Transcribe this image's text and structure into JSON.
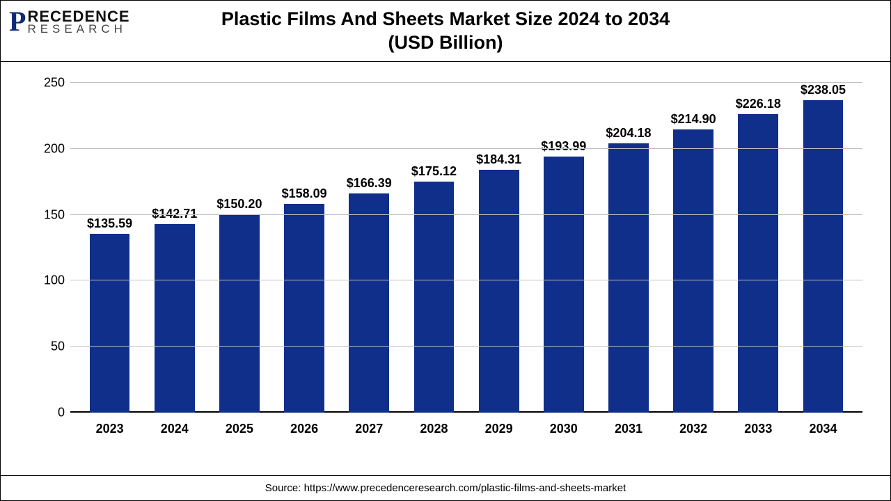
{
  "logo": {
    "mark": "P",
    "line1": "RECEDENCE",
    "line2": "RESEARCH"
  },
  "chart": {
    "type": "bar",
    "title_line1": "Plastic Films And Sheets Market Size 2024 to 2034",
    "title_line2": "(USD Billion)",
    "title_fontsize": 27,
    "categories": [
      "2023",
      "2024",
      "2025",
      "2026",
      "2027",
      "2028",
      "2029",
      "2030",
      "2031",
      "2032",
      "2033",
      "2034"
    ],
    "values": [
      135.59,
      142.71,
      150.2,
      158.09,
      166.39,
      175.12,
      184.31,
      193.99,
      204.18,
      214.9,
      226.18,
      238.05
    ],
    "value_labels": [
      "$135.59",
      "$142.71",
      "$150.20",
      "$158.09",
      "$166.39",
      "$175.12",
      "$184.31",
      "$193.99",
      "$204.18",
      "$214.90",
      "$226.18",
      "$238.05"
    ],
    "bar_color": "#0f2f8a",
    "grid_color": "#bfbfbf",
    "background_color": "#ffffff",
    "ylim": [
      0,
      250
    ],
    "ytick_step": 50,
    "yticks": [
      0,
      50,
      100,
      150,
      200,
      250
    ],
    "bar_width": 0.62,
    "label_fontsize": 18,
    "value_fontsize": 18,
    "value_fontweight": "700",
    "xaxis_label_fontweight": "700"
  },
  "source": "Source: https://www.precedenceresearch.com/plastic-films-and-sheets-market"
}
